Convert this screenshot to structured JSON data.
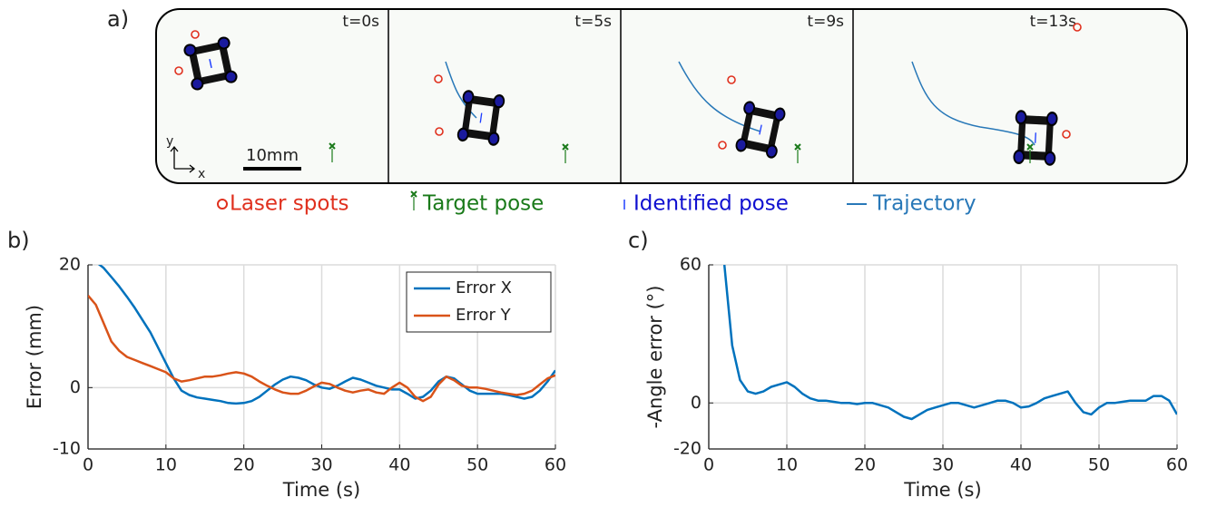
{
  "panel_labels": [
    "a)",
    "b)",
    "c)"
  ],
  "snapshots": {
    "times": [
      "t=0s",
      "t=5s",
      "t=9s",
      "t=13s"
    ],
    "scale_bar": "10mm",
    "axis_x": "x",
    "axis_y": "y",
    "legend": [
      "Laser spots",
      "Target pose",
      "Identified pose",
      "Trajectory"
    ]
  },
  "chart_data": [
    {
      "type": "line",
      "xlabel": "Time (s)",
      "ylabel": "Error (mm)",
      "x": [
        0,
        1,
        2,
        3,
        4,
        5,
        6,
        7,
        8,
        9,
        10,
        11,
        12,
        13,
        14,
        15,
        16,
        17,
        18,
        19,
        20,
        21,
        22,
        23,
        24,
        25,
        26,
        27,
        28,
        29,
        30,
        31,
        32,
        33,
        34,
        35,
        36,
        37,
        38,
        39,
        40,
        41,
        42,
        43,
        44,
        45,
        46,
        47,
        48,
        49,
        50,
        51,
        52,
        53,
        54,
        55,
        56,
        57,
        58,
        59,
        60
      ],
      "series": [
        {
          "name": "Error X",
          "color": "#0072bd",
          "values": [
            21.5,
            20.5,
            19.5,
            18,
            16.5,
            14.8,
            13,
            11,
            9,
            6.5,
            4,
            1.5,
            -0.5,
            -1.2,
            -1.6,
            -1.8,
            -2,
            -2.2,
            -2.5,
            -2.6,
            -2.5,
            -2.2,
            -1.5,
            -0.5,
            0.5,
            1.3,
            1.8,
            1.6,
            1.2,
            0.5,
            0,
            -0.2,
            0.3,
            1,
            1.6,
            1.3,
            0.8,
            0.3,
            0,
            -0.3,
            -0.3,
            -1,
            -1.8,
            -1.5,
            -0.5,
            1,
            1.8,
            1.5,
            0.5,
            -0.5,
            -1,
            -1,
            -1,
            -1,
            -1.2,
            -1.5,
            -1.8,
            -1.5,
            -0.5,
            1,
            2.8
          ]
        },
        {
          "name": "Error Y",
          "color": "#d95319",
          "values": [
            15,
            13.5,
            10.5,
            7.5,
            6,
            5,
            4.5,
            4,
            3.5,
            3,
            2.5,
            1.5,
            1,
            1.2,
            1.5,
            1.8,
            1.8,
            2,
            2.3,
            2.5,
            2.3,
            1.8,
            1,
            0.3,
            -0.3,
            -0.8,
            -1,
            -1,
            -0.5,
            0.2,
            0.8,
            0.6,
            0,
            -0.5,
            -0.8,
            -0.5,
            -0.3,
            -0.8,
            -1,
            0,
            0.8,
            0,
            -1.5,
            -2.2,
            -1.5,
            0.5,
            1.8,
            1.2,
            0.3,
            0,
            0,
            -0.2,
            -0.5,
            -0.8,
            -1,
            -1.2,
            -1,
            -0.5,
            0.5,
            1.5,
            2
          ]
        }
      ],
      "xlim": [
        0,
        60
      ],
      "xticks": [
        0,
        10,
        20,
        30,
        40,
        50,
        60
      ],
      "ylim": [
        -10,
        20
      ],
      "yticks": [
        -10,
        0,
        20
      ],
      "grid": true,
      "legend": "upper right"
    },
    {
      "type": "line",
      "xlabel": "Time (s)",
      "ylabel": "-Angle error (°)",
      "x": [
        2,
        3,
        4,
        5,
        6,
        7,
        8,
        9,
        10,
        11,
        12,
        13,
        14,
        15,
        16,
        17,
        18,
        19,
        20,
        21,
        22,
        23,
        24,
        25,
        26,
        27,
        28,
        29,
        30,
        31,
        32,
        33,
        34,
        35,
        36,
        37,
        38,
        39,
        40,
        41,
        42,
        43,
        44,
        45,
        46,
        47,
        48,
        49,
        50,
        51,
        52,
        53,
        54,
        55,
        56,
        57,
        58,
        59,
        60
      ],
      "series": [
        {
          "color": "#0072bd",
          "values": [
            60,
            25,
            10,
            5,
            4,
            5,
            7,
            8,
            9,
            7,
            4,
            2,
            1,
            1,
            0.5,
            0,
            0,
            -0.5,
            0,
            0,
            -1,
            -2,
            -4,
            -6,
            -7,
            -5,
            -3,
            -2,
            -1,
            0,
            0,
            -1,
            -2,
            -1,
            0,
            1,
            1,
            0,
            -2,
            -1.5,
            0,
            2,
            3,
            4,
            5,
            0,
            -4,
            -5,
            -2,
            0,
            0,
            0.5,
            1,
            1,
            1,
            3,
            3,
            1,
            -5
          ]
        }
      ],
      "xlim": [
        0,
        60
      ],
      "xticks": [
        0,
        10,
        20,
        30,
        40,
        50,
        60
      ],
      "ylim": [
        -20,
        60
      ],
      "yticks": [
        -20,
        0,
        60
      ],
      "grid": true
    }
  ]
}
